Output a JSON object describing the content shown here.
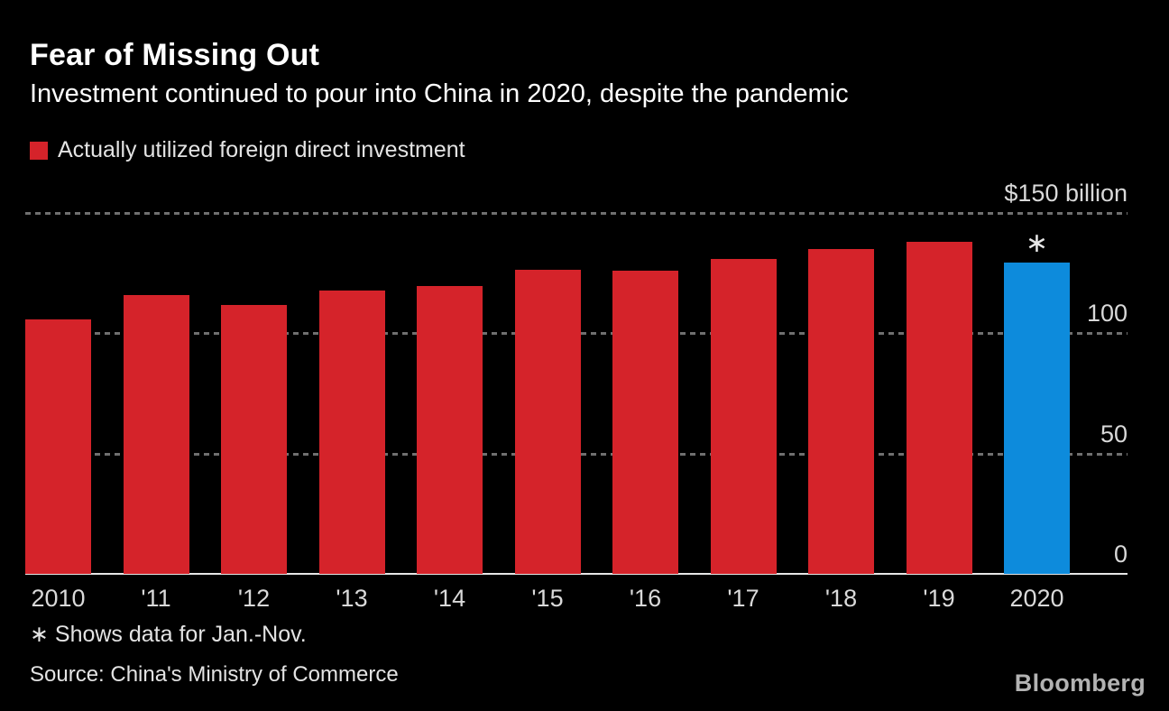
{
  "header": {
    "title": "Fear of Missing Out",
    "subtitle": "Investment continued to pour into China in 2020, despite the pandemic"
  },
  "legend": {
    "label": "Actually utilized foreign direct investment",
    "swatch_color": "#d5232a"
  },
  "chart_data": {
    "type": "bar",
    "title": "Actually utilized foreign direct investment",
    "unit": "$ billion",
    "categories": [
      "2010",
      "'11",
      "'12",
      "'13",
      "'14",
      "'15",
      "'16",
      "'17",
      "'18",
      "'19",
      "2020"
    ],
    "values": [
      105.7,
      116.0,
      111.7,
      117.6,
      119.6,
      126.3,
      126.0,
      131.0,
      134.9,
      138.1,
      129.5
    ],
    "ylim": [
      0,
      150
    ],
    "yticks": [
      0,
      50,
      100,
      150
    ],
    "ytick_labels": [
      "0",
      "50",
      "100",
      "$150 billion"
    ],
    "bar_color": "#d5232a",
    "highlight_index": 10,
    "highlight_color": "#0d8bdc",
    "annotation": {
      "index": 10,
      "symbol": "∗"
    },
    "gridlines": "dashed",
    "legend_position": "top-left"
  },
  "footnote": "∗ Shows data for Jan.-Nov.",
  "source": "Source: China's Ministry of Commerce",
  "logo": "Bloomberg",
  "colors": {
    "background": "#000000",
    "bar_red": "#d5232a",
    "bar_blue": "#0d8bdc",
    "gridline": "#6f6f6f",
    "axis_line": "#e6e6e6",
    "title_text": "#ffffff",
    "tick_text": "#d9d9d9",
    "logo_text": "#b3b3b3"
  }
}
